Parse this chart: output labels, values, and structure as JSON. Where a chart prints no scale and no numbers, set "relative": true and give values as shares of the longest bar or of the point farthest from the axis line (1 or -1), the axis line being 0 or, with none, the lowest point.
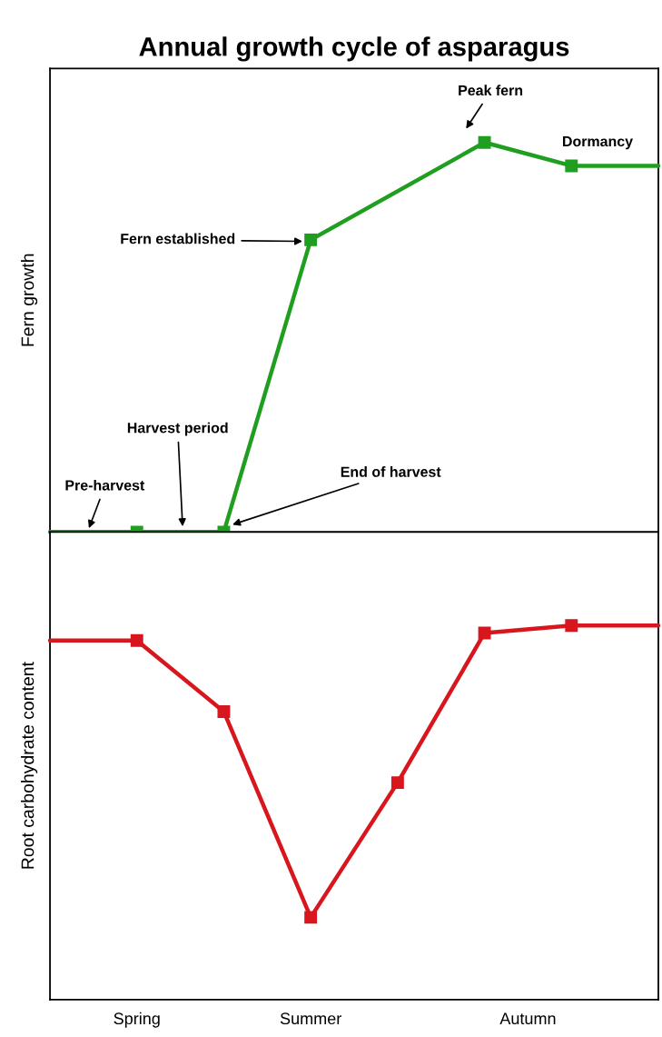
{
  "chart_data": [
    {
      "type": "line",
      "title": "Annual growth cycle of asparagus",
      "ylabel": "Fern growth",
      "relative": true,
      "categories": [
        null,
        null,
        null,
        null,
        null,
        null,
        null,
        null,
        null,
        null,
        null,
        null,
        null,
        null,
        null
      ],
      "tick_labels": false,
      "marker": "square",
      "line_style": "solid",
      "grid": false,
      "legend": false,
      "series": [
        {
          "color": "#1f9e1f",
          "values": [
            0,
            null,
            0,
            null,
            0,
            null,
            0.75,
            null,
            null,
            null,
            1,
            null,
            0.94,
            null,
            0.94
          ]
        }
      ],
      "annotations": [
        "Pre-harvest",
        "Harvest period",
        "End of harvest",
        "Fern established",
        "Peak fern",
        "Dormancy"
      ]
    },
    {
      "type": "line",
      "ylabel": "Root carbohydrate content",
      "relative": true,
      "categories": [
        null,
        null,
        "Spring",
        null,
        null,
        null,
        "Summer",
        null,
        null,
        null,
        null,
        "Autumn",
        null,
        null,
        null
      ],
      "tick_labels": "x",
      "marker": "square",
      "line_style": "solid",
      "grid": false,
      "legend": false,
      "series": [
        {
          "color": "#d7161d",
          "values": [
            0.96,
            null,
            0.96,
            null,
            0.77,
            null,
            0.22,
            null,
            0.58,
            null,
            0.98,
            null,
            1,
            null,
            1
          ]
        }
      ]
    }
  ]
}
